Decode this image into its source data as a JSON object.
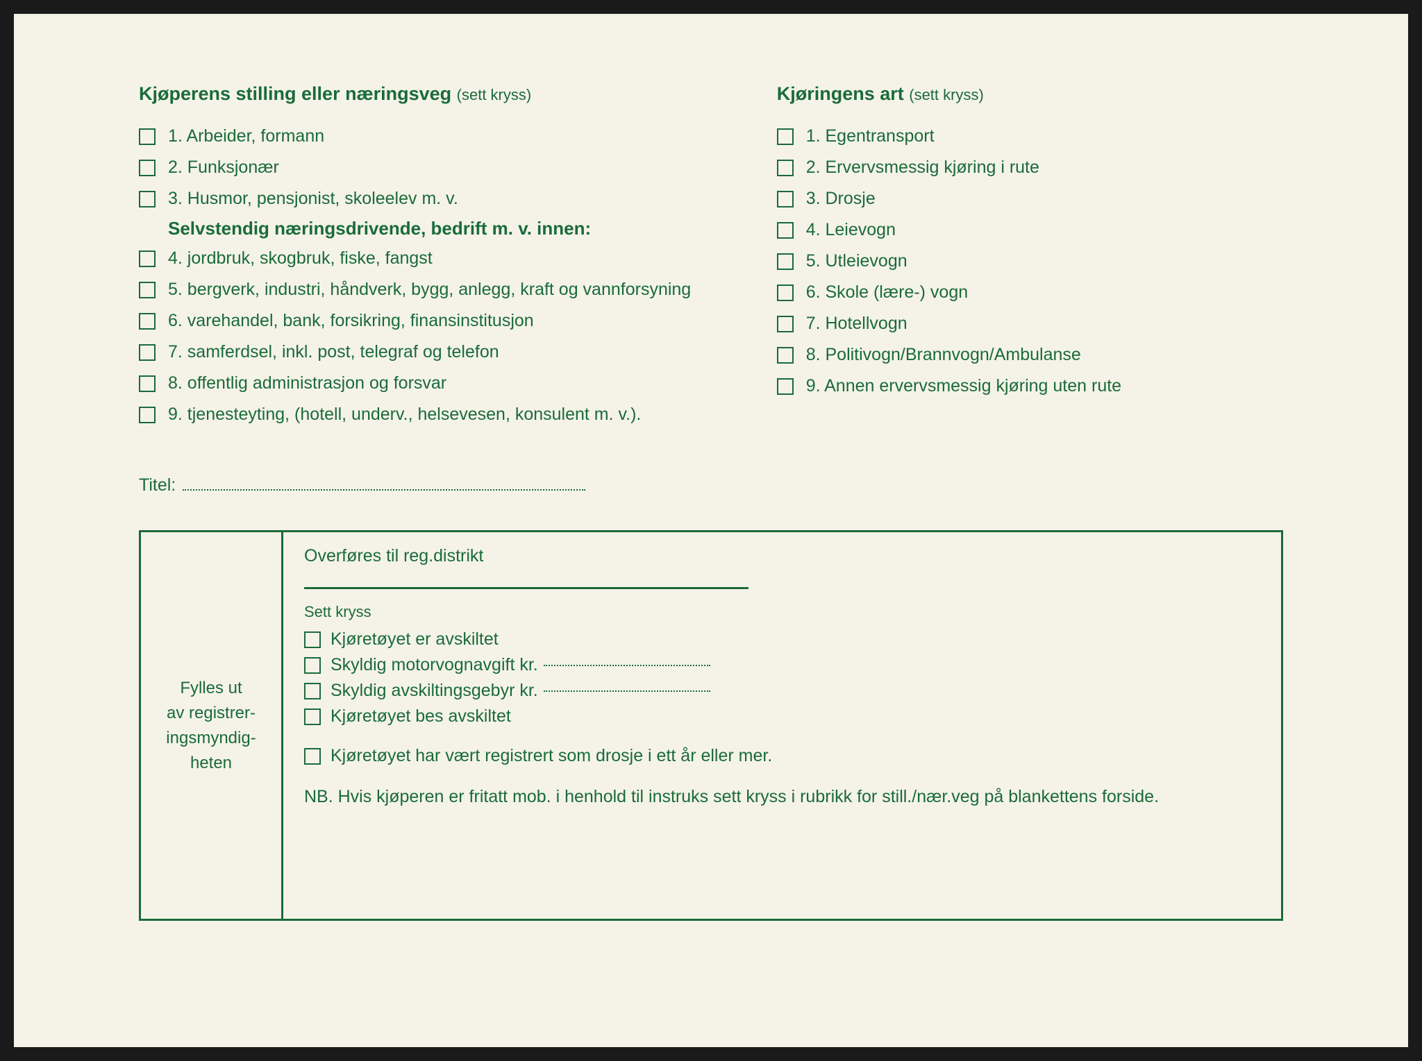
{
  "colors": {
    "text": "#1a6b3a",
    "paper": "#f5f3e8",
    "border": "#1a6b3a"
  },
  "typography": {
    "body_fontsize": 25,
    "header_bold_fontsize": 27,
    "header_light_fontsize": 22,
    "small_fontsize": 22
  },
  "leftColumn": {
    "header_bold": "Kjøperens stilling eller næringsveg",
    "header_light": "(sett kryss)",
    "items_top": [
      "1. Arbeider, formann",
      "2. Funksjonær",
      "3. Husmor, pensjonist, skoleelev m. v."
    ],
    "sub_header": "Selvstendig næringsdrivende, bedrift m. v. innen:",
    "items_bottom": [
      "4. jordbruk, skogbruk, fiske, fangst",
      "5. bergverk, industri, håndverk, bygg, anlegg, kraft og vannforsyning",
      "6. varehandel, bank, forsikring, finansinstitusjon",
      "7. samferdsel, inkl. post, telegraf og telefon",
      "8. offentlig administrasjon og forsvar",
      "9. tjenesteyting, (hotell, underv., helsevesen, konsulent m. v.)."
    ]
  },
  "rightColumn": {
    "header_bold": "Kjøringens art",
    "header_light": "(sett kryss)",
    "items": [
      "1. Egentransport",
      "2. Ervervsmessig kjøring i rute",
      "3. Drosje",
      "4. Leievogn",
      "5. Utleievogn",
      "6. Skole (lære-) vogn",
      "7. Hotellvogn",
      "8. Politivogn/Brannvogn/Ambulanse",
      "9. Annen ervervsmessig kjøring uten rute"
    ]
  },
  "titel": {
    "label": "Titel:"
  },
  "bottomBox": {
    "left_text": "Fylles ut av registrer-ingsmyndig-heten",
    "left_lines": [
      "Fylles ut",
      "av registrer-",
      "ingsmyndig-",
      "heten"
    ],
    "transfer_label": "Overføres til reg.distrikt",
    "sett_kryss": "Sett kryss",
    "items": [
      {
        "text": "Kjøretøyet er avskiltet",
        "dotted": false
      },
      {
        "text": "Skyldig motorvognavgift kr.",
        "dotted": true
      },
      {
        "text": "Skyldig avskiltingsgebyr kr.",
        "dotted": true
      },
      {
        "text": "Kjøretøyet bes avskiltet",
        "dotted": false
      }
    ],
    "extra_item": "Kjøretøyet har vært registrert som drosje i ett år eller mer.",
    "nb_text": "NB. Hvis kjøperen er fritatt mob. i henhold til instruks sett kryss i rubrikk for still./nær.veg på blankettens forside."
  }
}
